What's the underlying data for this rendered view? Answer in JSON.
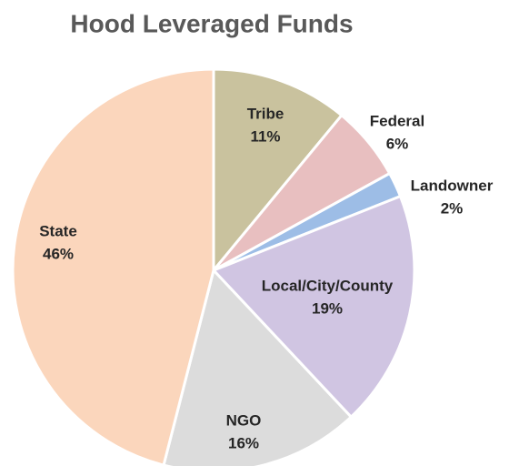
{
  "chart_data": {
    "type": "pie",
    "title": "Hood Leveraged Funds",
    "categories": [
      "Tribe",
      "Federal",
      "Landowner",
      "Local/City/County",
      "NGO",
      "State"
    ],
    "values": [
      11,
      6,
      2,
      19,
      16,
      46
    ],
    "value_labels": [
      "11%",
      "6%",
      "2%",
      "19%",
      "16%",
      "46%"
    ],
    "colors": [
      "#c9c29e",
      "#e8bfc0",
      "#9dbde6",
      "#d0c5e2",
      "#dcdcdc",
      "#fbd6bc"
    ]
  }
}
